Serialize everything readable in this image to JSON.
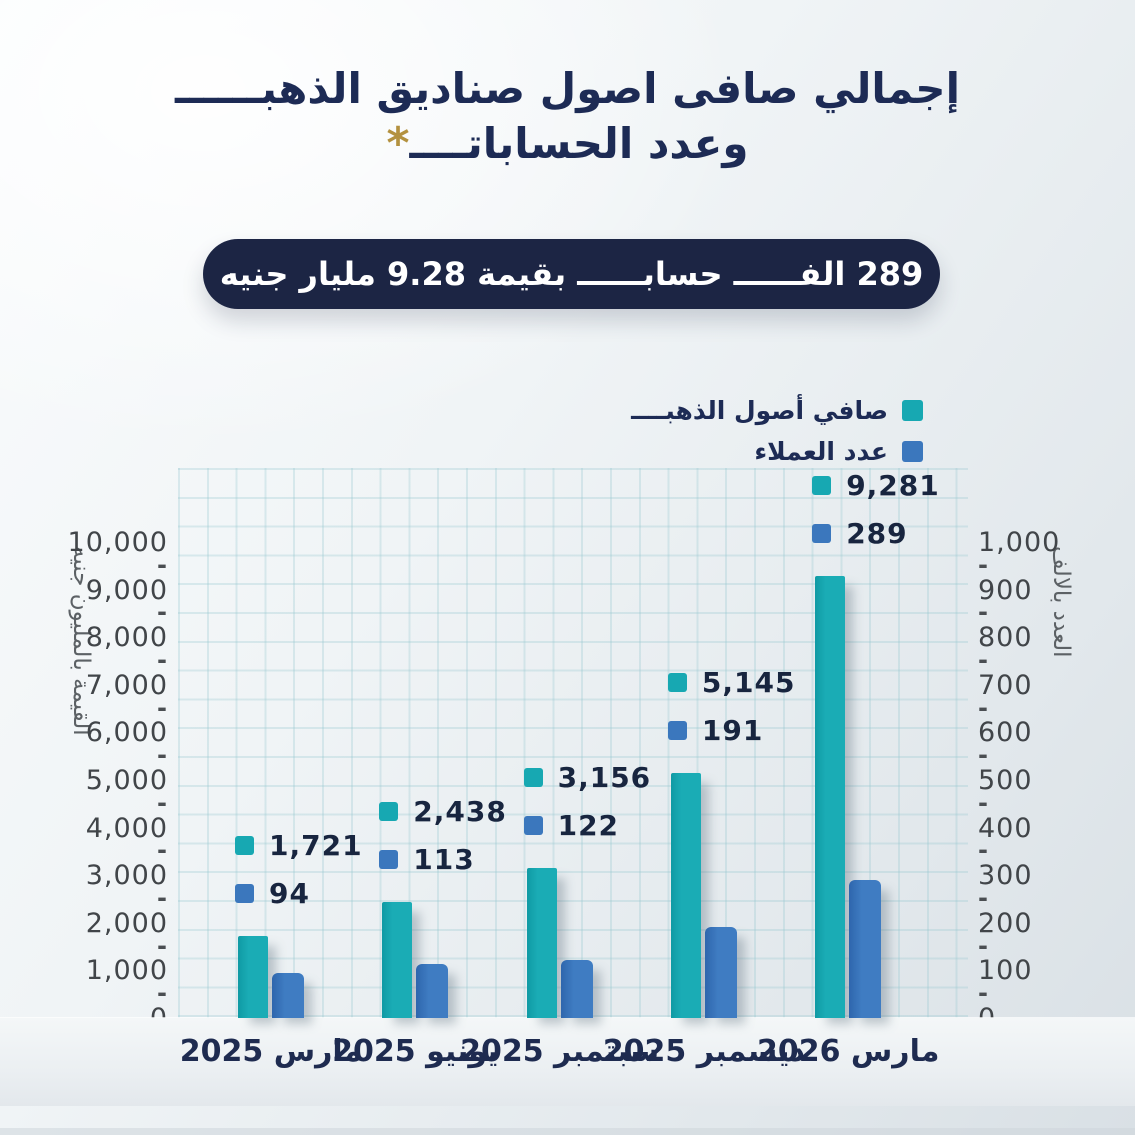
{
  "title": {
    "line1": "إجمالي صافى اصول صناديق الذهبــــــ",
    "line2": "وعدد الحساباتــــ",
    "asterisk": "*"
  },
  "banner": {
    "text": "289 الفــــــ حسابــــــ بقيمة 9.28 مليار جنيه"
  },
  "legend": {
    "items": [
      {
        "label": "صافي أصول الذهبــــ",
        "color": "#17a8b2",
        "icon": "teal-square"
      },
      {
        "label": "عدد العملاء",
        "color": "#3b77bd",
        "icon": "blue-square"
      }
    ]
  },
  "chart_data": {
    "type": "bar",
    "categories": [
      "مارس 2025",
      "يونيو 2025",
      "سبتمبر 2025",
      "ديسمبر 2025",
      "مارس 2026"
    ],
    "series": [
      {
        "name": "صافي أصول الذهب",
        "axis": "left",
        "color": "#17a8b2",
        "values": [
          1721,
          2438,
          3156,
          5145,
          9281
        ]
      },
      {
        "name": "عدد العملاء",
        "axis": "right",
        "color": "#3b77bd",
        "values": [
          94,
          113,
          122,
          191,
          289
        ]
      }
    ],
    "left_axis": {
      "title": "القيمة بالمليون جنيه",
      "min": 0,
      "max": 10000,
      "step": 1000
    },
    "right_axis": {
      "title": "العدد بالالف",
      "min": 0,
      "max": 1000,
      "step": 100
    },
    "grid": true,
    "legend_position": "top-right",
    "value_labels": true
  },
  "colors": {
    "navy": "#1d2b55",
    "banner_bg": "#1c2544",
    "teal": "#17a8b2",
    "blue": "#3b77bd",
    "gold": "#b3913f"
  }
}
